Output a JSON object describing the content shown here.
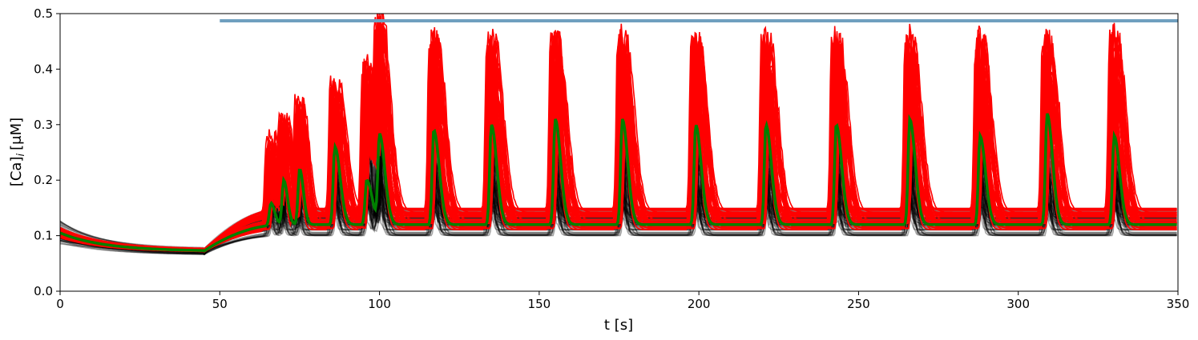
{
  "chart_data": {
    "type": "line",
    "title": "",
    "xlabel": "t [s]",
    "ylabel": "[Ca]",
    "ylabel_sub": "i",
    "ylabel_unit": "[μM]",
    "xlim": [
      0,
      350
    ],
    "ylim": [
      0,
      0.5
    ],
    "grid": false,
    "legend": "none",
    "x_ticks": [
      0,
      50,
      100,
      150,
      200,
      250,
      300,
      350
    ],
    "x_tick_labels": [
      "0",
      "50",
      "100",
      "150",
      "200",
      "250",
      "300",
      "350"
    ],
    "y_ticks": [
      0,
      0.1,
      0.2,
      0.3,
      0.4,
      0.5
    ],
    "y_tick_labels": [
      "0.0",
      "0.1",
      "0.2",
      "0.3",
      "0.4",
      "0.5"
    ],
    "stimulus_bar": {
      "x_start": 50,
      "x_end": 350,
      "y": 0.487,
      "color": "#6f9fbf"
    },
    "spike_times": [
      66,
      70,
      75,
      86,
      96,
      100,
      117,
      135,
      155,
      176,
      199,
      221,
      243,
      266,
      288,
      309,
      330
    ],
    "series": [
      {
        "role": "background traces",
        "color": "#000000",
        "baseline_after_stimulus": [
          0.1,
          0.15
        ],
        "peak_range": [
          0.15,
          0.32
        ]
      },
      {
        "role": "responding traces",
        "color": "#ff0000",
        "baseline_after_stimulus": [
          0.11,
          0.15
        ],
        "peak_range": [
          0.36,
          0.485
        ]
      },
      {
        "role": "mean trace",
        "color": "#008000",
        "initial": 0.105,
        "minimum": 0.072,
        "minimum_at": 30,
        "baseline_after_stimulus": 0.12,
        "peak_range": [
          0.2,
          0.32
        ]
      }
    ]
  }
}
